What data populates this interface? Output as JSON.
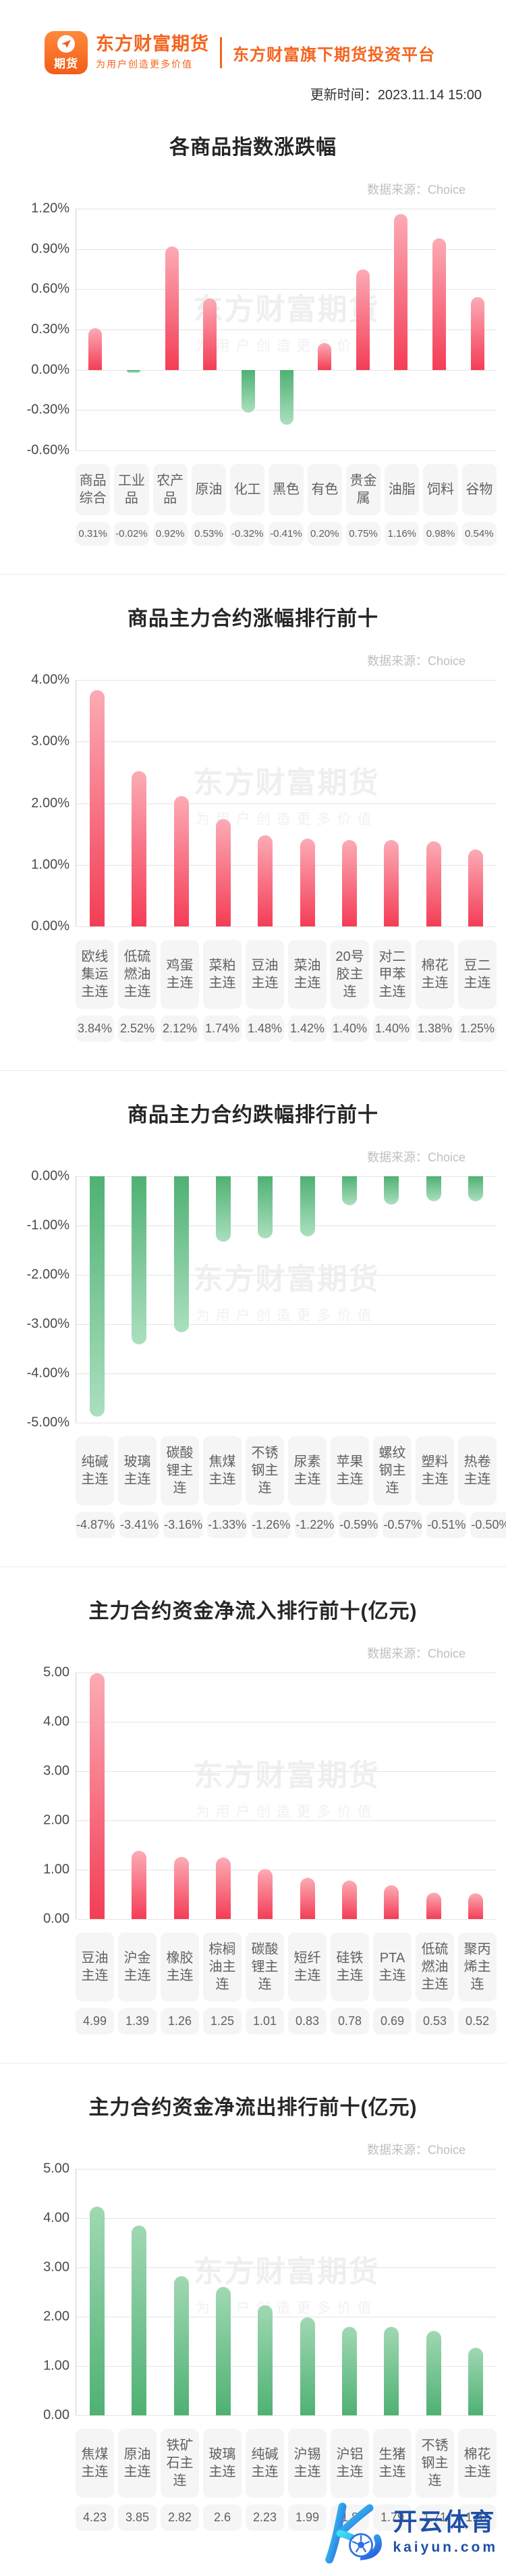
{
  "header": {
    "logo_badge": "期货",
    "brand_name": "东方财富期货",
    "brand_slogan": "为用户创造更多价值",
    "platform_title": "东方财富旗下期货投资平台",
    "update_time": "更新时间：2023.11.14 15:00"
  },
  "source_label": "数据来源：Choice",
  "watermark": {
    "line1": "东方财富期货",
    "line2": "为用户创造更多价值"
  },
  "colors": {
    "brand_orange": "#f4641e",
    "bar_red": "#f43d56",
    "bar_red_light": "#fcabb5",
    "bar_green": "#4fb173",
    "bar_green_light": "#abdfbf",
    "kaiyun_blue": "#1e4fa6",
    "kaiyun_gradient_start": "#3be0f2",
    "kaiyun_gradient_end": "#2a5ae0"
  },
  "footer": {
    "brand": "开云体育",
    "domain": "kaiyun.com"
  },
  "chart_data": [
    {
      "type": "bar",
      "title": "各商品指数涨跌幅",
      "categories": [
        "商品综合",
        "工业品",
        "农产品",
        "原油",
        "化工",
        "黑色",
        "有色",
        "贵金属",
        "油脂",
        "饲料",
        "谷物"
      ],
      "values": [
        0.31,
        -0.02,
        0.92,
        0.53,
        -0.32,
        -0.41,
        0.2,
        0.75,
        1.16,
        0.98,
        0.54
      ],
      "value_labels": [
        "0.31%",
        "-0.02%",
        "0.92%",
        "0.53%",
        "-0.32%",
        "-0.41%",
        "0.20%",
        "0.75%",
        "1.16%",
        "0.98%",
        "0.54%"
      ],
      "ylim": [
        -0.6,
        1.2
      ],
      "ticks": [
        "1.20%",
        "0.90%",
        "0.60%",
        "0.30%",
        "0.00%",
        "-0.30%",
        "-0.60%"
      ],
      "palette": "by-sign",
      "grid": true,
      "legend": "none"
    },
    {
      "type": "bar",
      "title": "商品主力合约涨幅排行前十",
      "categories": [
        "欧线集运主连",
        "低硫燃油主连",
        "鸡蛋主连",
        "菜粕主连",
        "豆油主连",
        "菜油主连",
        "20号胶主连",
        "对二甲苯主连",
        "棉花主连",
        "豆二主连"
      ],
      "values": [
        3.84,
        2.52,
        2.12,
        1.74,
        1.48,
        1.42,
        1.4,
        1.4,
        1.38,
        1.25
      ],
      "value_labels": [
        "3.84%",
        "2.52%",
        "2.12%",
        "1.74%",
        "1.48%",
        "1.42%",
        "1.40%",
        "1.40%",
        "1.38%",
        "1.25%"
      ],
      "ylim": [
        0,
        4
      ],
      "ticks": [
        "4.00%",
        "3.00%",
        "2.00%",
        "1.00%",
        "0.00%"
      ],
      "palette": "red",
      "grid": true,
      "legend": "none"
    },
    {
      "type": "bar",
      "title": "商品主力合约跌幅排行前十",
      "categories": [
        "纯碱主连",
        "玻璃主连",
        "碳酸锂主连",
        "焦煤主连",
        "不锈钢主连",
        "尿素主连",
        "苹果主连",
        "螺纹钢主连",
        "塑料主连",
        "热卷主连"
      ],
      "values": [
        -4.87,
        -3.41,
        -3.16,
        -1.33,
        -1.26,
        -1.22,
        -0.59,
        -0.57,
        -0.51,
        -0.5
      ],
      "value_labels": [
        "-4.87%",
        "-3.41%",
        "-3.16%",
        "-1.33%",
        "-1.26%",
        "-1.22%",
        "-0.59%",
        "-0.57%",
        "-0.51%",
        "-0.50%"
      ],
      "ylim": [
        -5,
        0
      ],
      "ticks": [
        "0.00%",
        "-1.00%",
        "-2.00%",
        "-3.00%",
        "-4.00%",
        "-5.00%"
      ],
      "palette": "green",
      "grid": true,
      "legend": "none"
    },
    {
      "type": "bar",
      "title": "主力合约资金净流入排行前十(亿元)",
      "categories": [
        "豆油主连",
        "沪金主连",
        "橡胶主连",
        "棕榈油主连",
        "碳酸锂主连",
        "短纤主连",
        "硅铁主连",
        "PTA主连",
        "低硫燃油主连",
        "聚丙烯主连"
      ],
      "values": [
        4.99,
        1.39,
        1.26,
        1.25,
        1.01,
        0.83,
        0.78,
        0.69,
        0.53,
        0.52
      ],
      "value_labels": [
        "4.99",
        "1.39",
        "1.26",
        "1.25",
        "1.01",
        "0.83",
        "0.78",
        "0.69",
        "0.53",
        "0.52"
      ],
      "ylim": [
        0,
        5
      ],
      "ticks": [
        "5.00",
        "4.00",
        "3.00",
        "2.00",
        "1.00",
        "0.00"
      ],
      "palette": "red",
      "grid": true,
      "legend": "none"
    },
    {
      "type": "bar",
      "title": "主力合约资金净流出排行前十(亿元)",
      "categories": [
        "焦煤主连",
        "原油主连",
        "铁矿石主连",
        "玻璃主连",
        "纯碱主连",
        "沪锡主连",
        "沪铝主连",
        "生猪主连",
        "不锈钢主连",
        "棉花主连"
      ],
      "values": [
        4.23,
        3.85,
        2.82,
        2.6,
        2.23,
        1.99,
        1.8,
        1.79,
        1.71,
        1.37
      ],
      "value_labels": [
        "4.23",
        "3.85",
        "2.82",
        "2.6",
        "2.23",
        "1.99",
        "1.8",
        "1.79",
        "1.71",
        "1.37"
      ],
      "ylim": [
        0,
        5
      ],
      "ticks": [
        "5.00",
        "4.00",
        "3.00",
        "2.00",
        "1.00",
        "0.00"
      ],
      "palette": "green",
      "grid": true,
      "legend": "none"
    }
  ]
}
